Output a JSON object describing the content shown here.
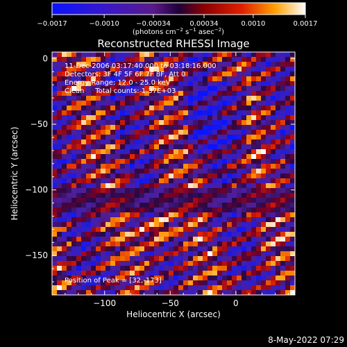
{
  "chart_data": {
    "type": "heatmap",
    "title": "Reconstructed RHESSI Image",
    "xlabel": "Heliocentric X (arcsec)",
    "ylabel": "Heliocentric Y (arcsec)",
    "xlim": [
      -140,
      45
    ],
    "ylim": [
      -180,
      5
    ],
    "x_ticks": [
      -100,
      -50,
      0
    ],
    "x_tick_labels": [
      "−100",
      "−50",
      "0"
    ],
    "y_ticks": [
      0,
      -50,
      -100,
      -150
    ],
    "y_tick_labels": [
      "0",
      "−50",
      "−100",
      "−150"
    ],
    "colorbar": {
      "range": [
        -0.0017,
        0.0017
      ],
      "ticks": [
        -0.0017,
        -0.001,
        -0.00034,
        0.00034,
        0.001,
        0.0017
      ],
      "tick_labels": [
        "−0.0017",
        "−0.0010",
        "−0.00034",
        "0.00034",
        "0.0010",
        "0.0017"
      ],
      "unit_parts": [
        "(photons cm",
        "−2",
        " s",
        "−1",
        " asec",
        "−2",
        ")"
      ]
    },
    "annotations": [
      "11-Dec-2006 03:17:40.000 to 03:18:16.000",
      "Detectors: 3F 4F 5F 6F 7F 8F, Att 0",
      "Energy Range: 12.0 - 25.0 keV",
      "Clean     Total counts: 1.37E+03"
    ],
    "peak_label": "Position of Peak = [32,-173]",
    "peak_position": [
      32,
      -173
    ],
    "grid": false
  },
  "footer": {
    "date": "8-May-2022 07:29"
  }
}
